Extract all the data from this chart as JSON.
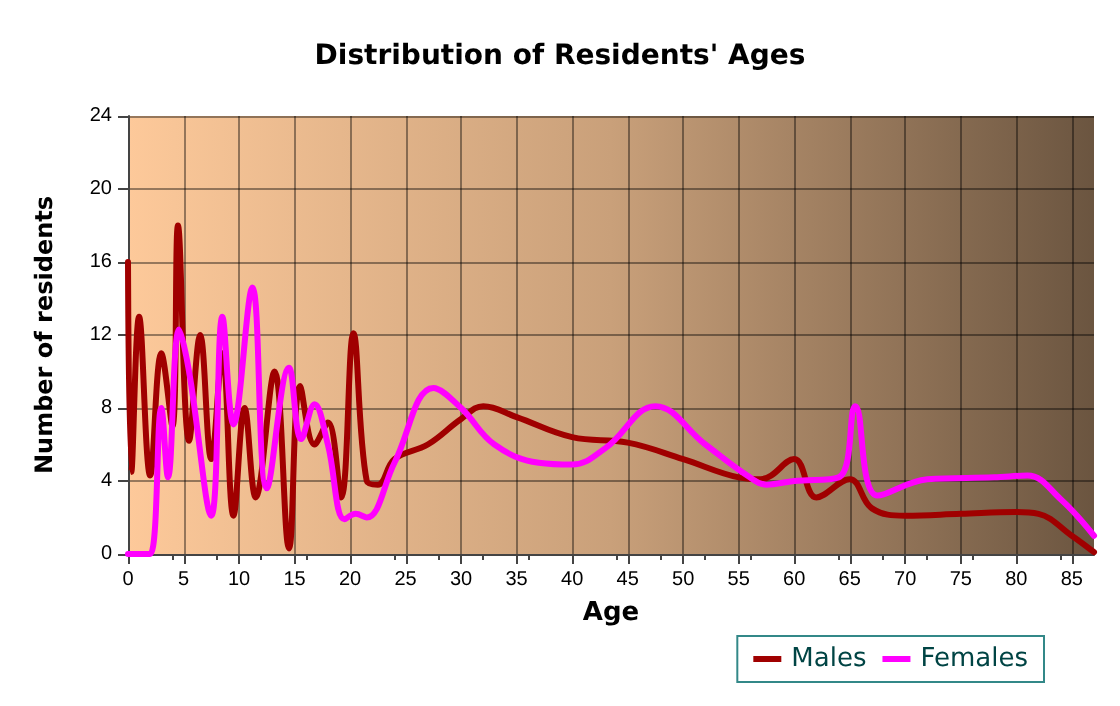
{
  "chart_data": {
    "type": "line",
    "title": "Distribution of Residents' Ages",
    "xlabel": "Age",
    "ylabel": "Number of residents",
    "xlim": [
      0,
      87
    ],
    "xticks": [
      0,
      5,
      10,
      15,
      20,
      25,
      30,
      35,
      40,
      45,
      50,
      55,
      60,
      65,
      70,
      75,
      80,
      85
    ],
    "ylim": [
      0,
      24
    ],
    "yticks": [
      0,
      4,
      8,
      12,
      16,
      20,
      24
    ],
    "grid": true,
    "legend": "bottom right",
    "marker": "none",
    "line_style": "solid",
    "series": [
      {
        "name": "Males",
        "color": "#a00000",
        "x": [
          0,
          0.3,
          1,
          2,
          3,
          4,
          4.5,
          5.5,
          6.5,
          7.5,
          8.5,
          9.5,
          10.5,
          11.5,
          13.2,
          14.5,
          15.5,
          16.8,
          18,
          19.2,
          20.3,
          21.5,
          22.5,
          24,
          27,
          30,
          32,
          35,
          40,
          45,
          50,
          55,
          57,
          60,
          62,
          65,
          67,
          70,
          75,
          80,
          82,
          85,
          87
        ],
        "values": [
          16,
          4.5,
          13,
          4.3,
          11,
          7,
          18,
          6.2,
          12,
          5.2,
          11,
          2.1,
          8,
          3.1,
          10,
          0.3,
          9.2,
          6,
          7.2,
          3.1,
          12.1,
          4,
          3.8,
          5.2,
          6,
          7.4,
          8.1,
          7.5,
          6.4,
          6.1,
          5.2,
          4.2,
          4.1,
          5.2,
          3.1,
          4.1,
          2.5,
          2.1,
          2.2,
          2.3,
          2.2,
          1,
          0.1
        ]
      },
      {
        "name": "Females",
        "color": "#ff00ff",
        "x": [
          0,
          1,
          2,
          3,
          3.6,
          4.6,
          5.5,
          7.5,
          8.5,
          9.5,
          11.2,
          12.5,
          14.5,
          15.6,
          16.8,
          18,
          19.5,
          20.5,
          21.5,
          24,
          27.5,
          30,
          33,
          37,
          40,
          43,
          47.5,
          52,
          56,
          57.5,
          60,
          64,
          65.5,
          67.5,
          72,
          78,
          81,
          84,
          87
        ],
        "values": [
          0,
          0,
          0,
          8,
          4.2,
          12.3,
          10,
          2.1,
          13,
          7.1,
          14.6,
          3.6,
          10.2,
          6.3,
          8.2,
          6,
          1.9,
          2.2,
          2,
          5,
          9.1,
          8,
          6,
          5,
          4.9,
          5.8,
          8.1,
          6,
          4.2,
          3.8,
          4,
          4.2,
          8.1,
          3.2,
          4.1,
          4.2,
          4.3,
          3,
          1
        ]
      }
    ]
  }
}
